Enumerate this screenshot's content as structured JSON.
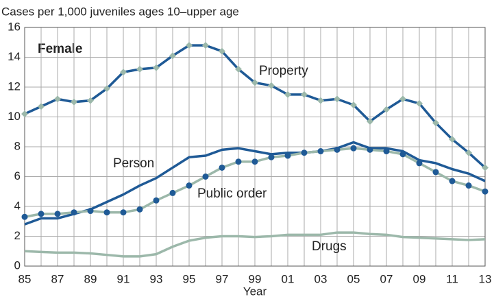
{
  "chart_data": {
    "type": "line",
    "title": "Female",
    "y_axis_label": "Cases per 1,000 juveniles ages 10–upper age",
    "x_axis_label": "Year",
    "categories": [
      "85",
      null,
      "87",
      null,
      "89",
      null,
      "91",
      null,
      "93",
      null,
      "95",
      null,
      "97",
      null,
      "99",
      null,
      "01",
      null,
      "03",
      null,
      "05",
      null,
      "07",
      null,
      "09",
      null,
      "11",
      null,
      "13"
    ],
    "ylim": [
      0,
      16
    ],
    "yticks": [
      0,
      2,
      4,
      6,
      8,
      10,
      12,
      14,
      16
    ],
    "grid": true,
    "series": [
      {
        "name": "Property",
        "color": "#1f5a96",
        "marker": "diamond",
        "marker_color": "#9cb8aa",
        "values": [
          10.2,
          10.7,
          11.2,
          11.0,
          11.1,
          11.9,
          13.0,
          13.2,
          13.3,
          14.1,
          14.8,
          14.8,
          14.4,
          13.2,
          12.3,
          12.1,
          11.5,
          11.5,
          11.1,
          11.2,
          10.8,
          9.7,
          10.5,
          11.2,
          10.9,
          9.6,
          8.5,
          7.6,
          6.6
        ]
      },
      {
        "name": "Person",
        "color": "#1f5a96",
        "values": [
          2.8,
          3.2,
          3.2,
          3.5,
          3.8,
          4.3,
          4.8,
          5.4,
          5.9,
          6.6,
          7.3,
          7.4,
          7.8,
          7.9,
          7.7,
          7.5,
          7.6,
          7.6,
          7.7,
          7.9,
          8.3,
          7.9,
          7.9,
          7.7,
          7.1,
          6.9,
          6.5,
          6.2,
          5.7
        ]
      },
      {
        "name": "Public order",
        "color": "#9cb8aa",
        "marker": "circle",
        "marker_color": "#1f5a96",
        "values": [
          3.3,
          3.5,
          3.5,
          3.6,
          3.7,
          3.6,
          3.6,
          3.8,
          4.4,
          4.9,
          5.4,
          6.0,
          6.6,
          7.0,
          7.0,
          7.3,
          7.4,
          7.6,
          7.7,
          7.8,
          7.9,
          7.8,
          7.7,
          7.5,
          6.9,
          6.3,
          5.7,
          5.4,
          5.0
        ]
      },
      {
        "name": "Drugs",
        "color": "#9cb8aa",
        "values": [
          1.0,
          0.95,
          0.9,
          0.9,
          0.85,
          0.75,
          0.65,
          0.65,
          0.8,
          1.3,
          1.7,
          1.9,
          2.0,
          2.0,
          1.95,
          2.0,
          2.1,
          2.1,
          2.1,
          2.25,
          2.25,
          2.15,
          2.1,
          1.95,
          1.9,
          1.85,
          1.8,
          1.75,
          1.8
        ]
      }
    ]
  }
}
